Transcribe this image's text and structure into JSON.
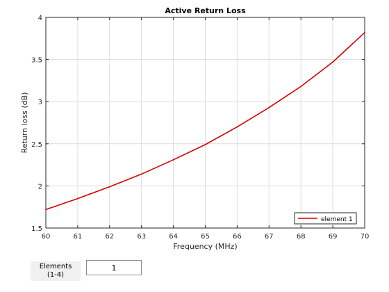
{
  "chart_data": {
    "type": "line",
    "title": "Active Return Loss",
    "xlabel": "Frequency (MHz)",
    "ylabel": "Return loss (dB)",
    "xlim": [
      60,
      70
    ],
    "ylim": [
      1.5,
      4
    ],
    "xticks": [
      60,
      61,
      62,
      63,
      64,
      65,
      66,
      67,
      68,
      69,
      70
    ],
    "yticks": [
      1.5,
      2,
      2.5,
      3,
      3.5,
      4
    ],
    "ytick_labels": [
      "1.5",
      "2",
      "2.5",
      "3",
      "3.5",
      "4"
    ],
    "grid": true,
    "legend_position": "bottom-right",
    "series": [
      {
        "name": "element 1",
        "color": "#d40000",
        "x": [
          60,
          61,
          62,
          63,
          64,
          65,
          66,
          67,
          68,
          69,
          70
        ],
        "y": [
          1.72,
          1.85,
          1.99,
          2.14,
          2.31,
          2.49,
          2.7,
          2.93,
          3.18,
          3.47,
          3.82
        ]
      }
    ]
  },
  "controls": {
    "elements_label": "Elements\n(1-4)",
    "elements_value": "1"
  }
}
